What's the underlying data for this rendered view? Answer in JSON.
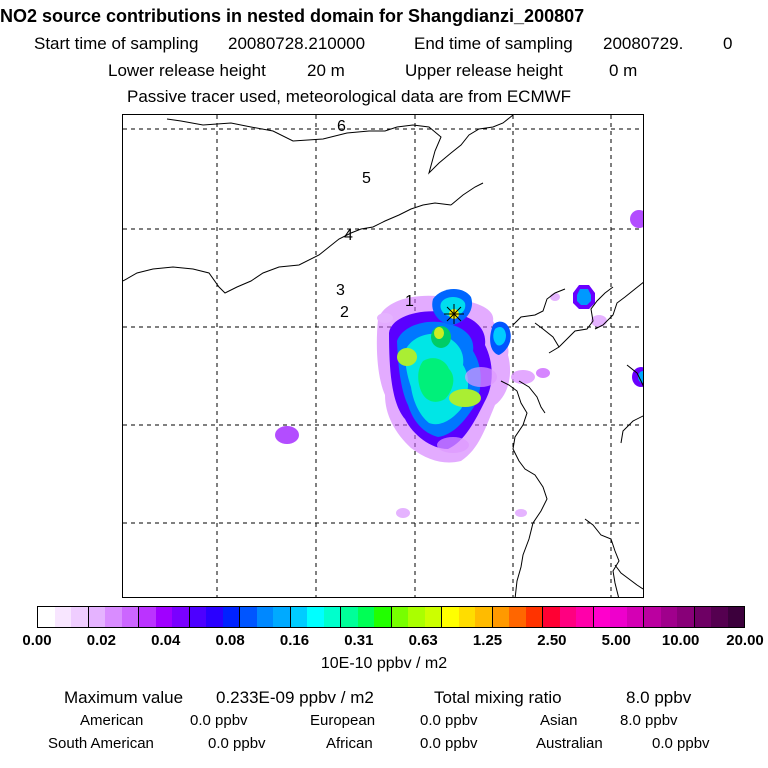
{
  "title": "NO2 source contributions in nested domain for Shangdianzi_200807",
  "sampling": {
    "start_label": "Start time of sampling",
    "start_value": "20080728.210000",
    "end_label": "End time of sampling",
    "end_value": "20080729.",
    "end_suffix": "0"
  },
  "release": {
    "lower_label": "Lower release height",
    "lower_value": "20 m",
    "upper_label": "Upper release height",
    "upper_value": "0 m"
  },
  "tracer_note": "Passive tracer used, meteorological data are from ECMWF",
  "map": {
    "trajectory_labels": [
      "1",
      "2",
      "3",
      "4",
      "5",
      "6"
    ],
    "receptor_symbol": "star",
    "receptor_color": "#ffee00"
  },
  "colorbar": {
    "tick_labels": [
      "0.00",
      "0.02",
      "0.04",
      "0.08",
      "0.16",
      "0.31",
      "0.63",
      "1.25",
      "2.50",
      "5.00",
      "10.00",
      "20.00"
    ],
    "unit": "10E-10 ppbv / m2",
    "colors": [
      "#ffffff",
      "#f8e6ff",
      "#efcdff",
      "#e5b3ff",
      "#d98cff",
      "#cc66ff",
      "#bb33ff",
      "#a000ff",
      "#7a00ff",
      "#4d00ff",
      "#2a00ff",
      "#0022ff",
      "#0055ff",
      "#0088ff",
      "#00aaff",
      "#00ccff",
      "#00ffff",
      "#00ffcc",
      "#00ff99",
      "#00ff55",
      "#22ff00",
      "#77ff00",
      "#aaff00",
      "#ccff00",
      "#ffff00",
      "#ffdd00",
      "#ffbb00",
      "#ff9900",
      "#ff6600",
      "#ff3300",
      "#ff0033",
      "#ff0080",
      "#ff00aa",
      "#ff00cc",
      "#ee00cc",
      "#d400b4",
      "#bb00a0",
      "#a0008c",
      "#880078",
      "#6e0064",
      "#550050",
      "#3c003c"
    ]
  },
  "summary": {
    "max_label": "Maximum value",
    "max_value": "0.233E-09 ppbv / m2",
    "total_label": "Total mixing ratio",
    "total_value": "8.0 ppbv",
    "regions": [
      {
        "name": "American",
        "value": "0.0 ppbv"
      },
      {
        "name": "European",
        "value": "0.0 ppbv"
      },
      {
        "name": "Asian",
        "value": "8.0 ppbv"
      },
      {
        "name": "South American",
        "value": "0.0 ppbv"
      },
      {
        "name": "African",
        "value": "0.0 ppbv"
      },
      {
        "name": "Australian",
        "value": "0.0 ppbv"
      }
    ]
  }
}
